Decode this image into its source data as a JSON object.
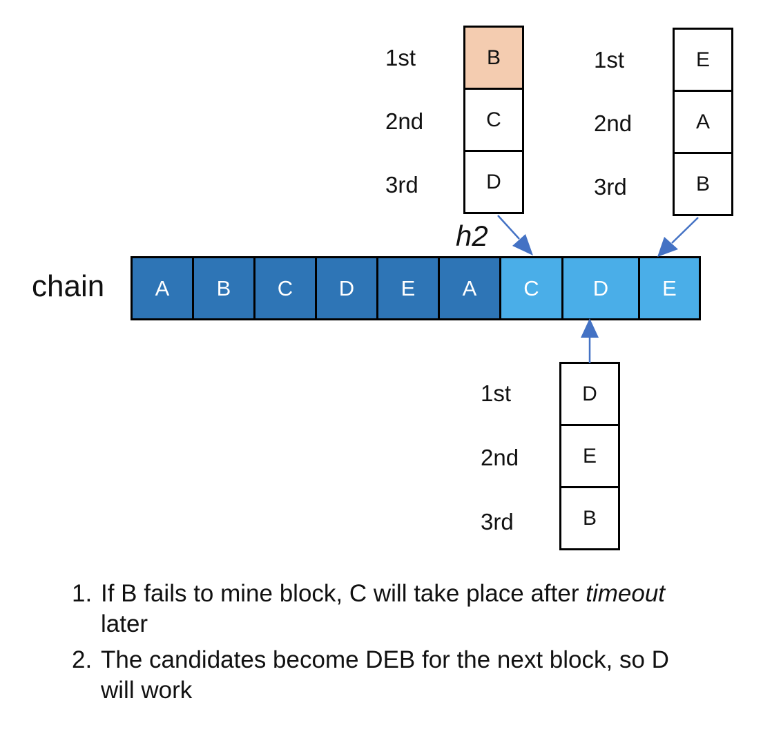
{
  "chain": {
    "label": "chain",
    "cells": [
      {
        "text": "A",
        "kind": "mined"
      },
      {
        "text": "B",
        "kind": "mined"
      },
      {
        "text": "C",
        "kind": "mined"
      },
      {
        "text": "D",
        "kind": "mined"
      },
      {
        "text": "E",
        "kind": "mined"
      },
      {
        "text": "A",
        "kind": "mined"
      },
      {
        "text": "C",
        "kind": "candidate"
      },
      {
        "text": "D",
        "kind": "candidate"
      },
      {
        "text": "E",
        "kind": "candidate"
      }
    ],
    "marker": "h2"
  },
  "candidate_lists": [
    {
      "id": "left",
      "ranks": [
        "1st",
        "2nd",
        "3rd"
      ],
      "entries": [
        "B",
        "C",
        "D"
      ],
      "highlight_index": 0
    },
    {
      "id": "right",
      "ranks": [
        "1st",
        "2nd",
        "3rd"
      ],
      "entries": [
        "E",
        "A",
        "B"
      ],
      "highlight_index": -1
    },
    {
      "id": "bottom",
      "ranks": [
        "1st",
        "2nd",
        "3rd"
      ],
      "entries": [
        "D",
        "E",
        "B"
      ],
      "highlight_index": -1
    }
  ],
  "notes": [
    {
      "num": "1.",
      "before": "If B fails to mine block, C will take place after ",
      "italic": "timeout",
      "after": " later"
    },
    {
      "num": "2.",
      "before": "The candidates become DEB for the next block, so D will work",
      "italic": "",
      "after": ""
    }
  ],
  "colors": {
    "mined": "#2e75b6",
    "candidate": "#4aaee8",
    "highlight": "#f4ccb0",
    "arrow": "#4472c4",
    "border": "#000000"
  }
}
